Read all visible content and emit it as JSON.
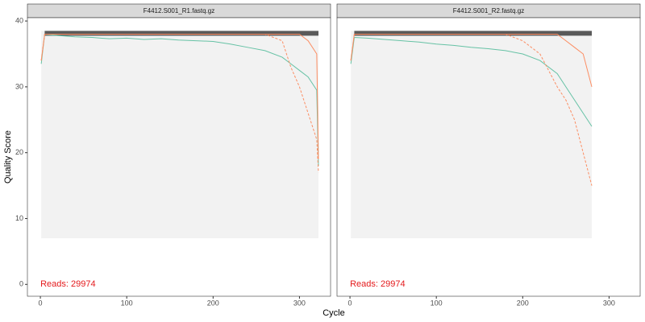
{
  "x_label": "Cycle",
  "y_label": "Quality Score",
  "ylim": [
    -1.8,
    40.5
  ],
  "yticks": [
    0,
    10,
    20,
    30,
    40
  ],
  "chart_data": [
    {
      "type": "line",
      "title": "F4412.S001_R1.fastq.gz",
      "annotation": "Reads:  29974",
      "xlim": [
        -15,
        336
      ],
      "xticks": [
        0,
        100,
        200,
        300
      ],
      "x": [
        1,
        5,
        20,
        40,
        60,
        80,
        100,
        120,
        140,
        160,
        180,
        200,
        220,
        240,
        260,
        280,
        290,
        300,
        310,
        320,
        322
      ],
      "series": [
        {
          "color": "#66c2a5",
          "dashed": false,
          "values": [
            33.5,
            38,
            37.8,
            37.6,
            37.5,
            37.3,
            37.4,
            37.2,
            37.3,
            37.1,
            37,
            36.9,
            36.5,
            36,
            35.5,
            34.5,
            33.5,
            32.5,
            31.5,
            29.5,
            18
          ]
        },
        {
          "color": "#fc8d62",
          "dashed": false,
          "values": [
            34,
            38,
            38,
            38,
            38,
            38,
            38,
            38,
            38,
            38,
            38,
            38,
            38,
            38,
            38,
            38,
            38,
            38,
            37,
            35,
            19
          ]
        },
        {
          "color": "#fc8d62",
          "dashed": true,
          "values": [
            34,
            38,
            38,
            38,
            38,
            38,
            38,
            38,
            38,
            38,
            38,
            38,
            38,
            38,
            38,
            37,
            33,
            30,
            26,
            22,
            17
          ]
        }
      ]
    },
    {
      "type": "line",
      "title": "F4412.S001_R2.fastq.gz",
      "annotation": "Reads:  29974",
      "xlim": [
        -15,
        336
      ],
      "xticks": [
        0,
        100,
        200,
        300
      ],
      "x": [
        1,
        5,
        20,
        40,
        60,
        80,
        100,
        120,
        140,
        160,
        180,
        200,
        220,
        240,
        250,
        260,
        270,
        280
      ],
      "series": [
        {
          "color": "#66c2a5",
          "dashed": false,
          "values": [
            33.5,
            37.5,
            37.4,
            37.2,
            37,
            36.8,
            36.5,
            36.3,
            36,
            35.8,
            35.5,
            35,
            34,
            32,
            30,
            28,
            26,
            24
          ]
        },
        {
          "color": "#fc8d62",
          "dashed": false,
          "values": [
            34,
            38,
            38,
            38,
            38,
            38,
            38,
            38,
            38,
            38,
            38,
            38,
            38,
            38,
            37,
            36,
            35,
            30
          ]
        },
        {
          "color": "#fc8d62",
          "dashed": true,
          "values": [
            34,
            38,
            38,
            38,
            38,
            38,
            38,
            38,
            38,
            38,
            38,
            37,
            35,
            30,
            28,
            25,
            20,
            15
          ]
        }
      ]
    }
  ]
}
